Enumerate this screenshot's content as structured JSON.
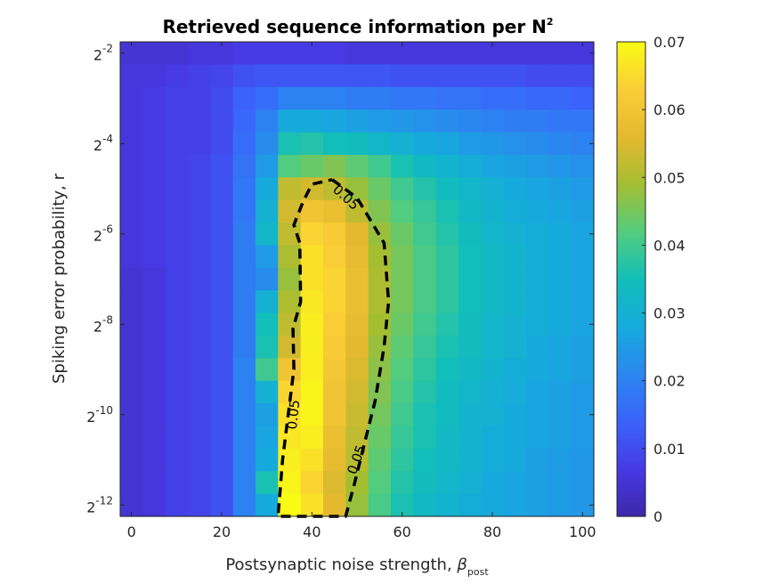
{
  "chart_data": {
    "type": "heatmap",
    "title": "Retrieved sequence information per N",
    "title_superscript": "2",
    "xlabel": "Postsynaptic noise strength, ",
    "xlabel_symbol": "β",
    "xlabel_subscript": "post",
    "ylabel": "Spiking error probability, r",
    "x": [
      0,
      5,
      10,
      15,
      20,
      25,
      30,
      35,
      40,
      45,
      50,
      55,
      60,
      65,
      70,
      75,
      80,
      85,
      90,
      95,
      100
    ],
    "y_exponents": [
      -2,
      -2.5,
      -3,
      -3.5,
      -4,
      -4.5,
      -5,
      -5.5,
      -6,
      -6.5,
      -7,
      -7.5,
      -8,
      -8.5,
      -9,
      -9.5,
      -10,
      -10.5,
      -11,
      -11.5,
      -12
    ],
    "z": [
      [
        0.005,
        0.005,
        0.005,
        0.006,
        0.006,
        0.007,
        0.007,
        0.007,
        0.007,
        0.007,
        0.006,
        0.006,
        0.006,
        0.006,
        0.006,
        0.006,
        0.006,
        0.006,
        0.006,
        0.006,
        0.006
      ],
      [
        0.006,
        0.006,
        0.007,
        0.008,
        0.009,
        0.011,
        0.012,
        0.012,
        0.012,
        0.012,
        0.012,
        0.012,
        0.011,
        0.011,
        0.011,
        0.011,
        0.011,
        0.011,
        0.01,
        0.01,
        0.01
      ],
      [
        0.006,
        0.007,
        0.008,
        0.008,
        0.01,
        0.014,
        0.016,
        0.02,
        0.02,
        0.02,
        0.019,
        0.019,
        0.018,
        0.018,
        0.017,
        0.017,
        0.016,
        0.016,
        0.015,
        0.015,
        0.014
      ],
      [
        0.006,
        0.007,
        0.008,
        0.008,
        0.01,
        0.015,
        0.02,
        0.028,
        0.028,
        0.027,
        0.026,
        0.025,
        0.024,
        0.023,
        0.022,
        0.021,
        0.02,
        0.019,
        0.019,
        0.018,
        0.018
      ],
      [
        0.006,
        0.007,
        0.008,
        0.008,
        0.01,
        0.016,
        0.022,
        0.036,
        0.037,
        0.035,
        0.034,
        0.032,
        0.03,
        0.028,
        0.027,
        0.025,
        0.024,
        0.023,
        0.022,
        0.021,
        0.02
      ],
      [
        0.006,
        0.007,
        0.008,
        0.009,
        0.011,
        0.017,
        0.025,
        0.042,
        0.044,
        0.046,
        0.043,
        0.04,
        0.036,
        0.033,
        0.031,
        0.029,
        0.027,
        0.026,
        0.025,
        0.024,
        0.023
      ],
      [
        0.006,
        0.007,
        0.008,
        0.009,
        0.011,
        0.018,
        0.028,
        0.052,
        0.054,
        0.052,
        0.048,
        0.044,
        0.04,
        0.037,
        0.034,
        0.032,
        0.03,
        0.028,
        0.027,
        0.026,
        0.025
      ],
      [
        0.006,
        0.007,
        0.008,
        0.009,
        0.011,
        0.018,
        0.03,
        0.054,
        0.06,
        0.058,
        0.052,
        0.046,
        0.042,
        0.039,
        0.036,
        0.033,
        0.031,
        0.029,
        0.028,
        0.027,
        0.026
      ],
      [
        0.006,
        0.007,
        0.008,
        0.009,
        0.011,
        0.019,
        0.032,
        0.052,
        0.064,
        0.062,
        0.056,
        0.048,
        0.044,
        0.04,
        0.037,
        0.034,
        0.032,
        0.03,
        0.029,
        0.028,
        0.027
      ],
      [
        0.006,
        0.007,
        0.008,
        0.009,
        0.011,
        0.019,
        0.025,
        0.05,
        0.066,
        0.063,
        0.057,
        0.049,
        0.045,
        0.041,
        0.038,
        0.035,
        0.033,
        0.031,
        0.029,
        0.028,
        0.027
      ],
      [
        0.005,
        0.006,
        0.008,
        0.009,
        0.011,
        0.019,
        0.022,
        0.048,
        0.066,
        0.064,
        0.058,
        0.05,
        0.045,
        0.041,
        0.038,
        0.035,
        0.033,
        0.031,
        0.029,
        0.028,
        0.027
      ],
      [
        0.005,
        0.006,
        0.008,
        0.009,
        0.011,
        0.019,
        0.03,
        0.05,
        0.067,
        0.064,
        0.058,
        0.05,
        0.045,
        0.041,
        0.038,
        0.035,
        0.033,
        0.031,
        0.029,
        0.028,
        0.027
      ],
      [
        0.005,
        0.006,
        0.008,
        0.009,
        0.011,
        0.019,
        0.035,
        0.052,
        0.068,
        0.063,
        0.057,
        0.049,
        0.044,
        0.04,
        0.037,
        0.034,
        0.032,
        0.03,
        0.029,
        0.028,
        0.027
      ],
      [
        0.005,
        0.006,
        0.008,
        0.009,
        0.011,
        0.019,
        0.036,
        0.054,
        0.068,
        0.062,
        0.056,
        0.048,
        0.043,
        0.039,
        0.036,
        0.034,
        0.032,
        0.03,
        0.028,
        0.027,
        0.026
      ],
      [
        0.005,
        0.006,
        0.008,
        0.009,
        0.011,
        0.02,
        0.04,
        0.06,
        0.068,
        0.061,
        0.055,
        0.047,
        0.042,
        0.038,
        0.035,
        0.033,
        0.031,
        0.029,
        0.028,
        0.027,
        0.026
      ],
      [
        0.005,
        0.006,
        0.008,
        0.009,
        0.011,
        0.02,
        0.03,
        0.064,
        0.069,
        0.06,
        0.054,
        0.046,
        0.041,
        0.037,
        0.034,
        0.032,
        0.03,
        0.029,
        0.027,
        0.026,
        0.025
      ],
      [
        0.005,
        0.006,
        0.008,
        0.009,
        0.011,
        0.02,
        0.026,
        0.066,
        0.069,
        0.06,
        0.053,
        0.045,
        0.04,
        0.036,
        0.034,
        0.031,
        0.03,
        0.028,
        0.027,
        0.026,
        0.025
      ],
      [
        0.005,
        0.006,
        0.008,
        0.009,
        0.011,
        0.02,
        0.027,
        0.067,
        0.068,
        0.058,
        0.052,
        0.044,
        0.039,
        0.036,
        0.033,
        0.031,
        0.029,
        0.028,
        0.027,
        0.026,
        0.025
      ],
      [
        0.005,
        0.006,
        0.008,
        0.009,
        0.011,
        0.02,
        0.028,
        0.068,
        0.066,
        0.057,
        0.051,
        0.043,
        0.038,
        0.035,
        0.033,
        0.031,
        0.029,
        0.028,
        0.026,
        0.025,
        0.024
      ],
      [
        0.005,
        0.006,
        0.008,
        0.009,
        0.011,
        0.02,
        0.036,
        0.069,
        0.064,
        0.055,
        0.049,
        0.042,
        0.037,
        0.034,
        0.032,
        0.03,
        0.028,
        0.027,
        0.026,
        0.025,
        0.024
      ],
      [
        0.005,
        0.006,
        0.008,
        0.009,
        0.011,
        0.02,
        0.028,
        0.07,
        0.066,
        0.056,
        0.048,
        0.041,
        0.036,
        0.033,
        0.031,
        0.029,
        0.028,
        0.027,
        0.026,
        0.025,
        0.024
      ]
    ],
    "xlim": [
      -2.5,
      102.5
    ],
    "ylim_exponent": [
      -12.25,
      -1.75
    ],
    "y_scale": "log2",
    "xticks": [
      0,
      20,
      40,
      60,
      80,
      100
    ],
    "yticks_base": "2",
    "yticks_exponents": [
      "-2",
      "-4",
      "-6",
      "-8",
      "-10",
      "-12"
    ],
    "colorbar": {
      "colormap": "parula",
      "range": [
        0,
        0.07
      ],
      "ticks": [
        "0",
        "0.01",
        "0.02",
        "0.03",
        "0.04",
        "0.05",
        "0.06",
        "0.07"
      ]
    },
    "contour": {
      "level": 0.05,
      "style": "dashed",
      "color": "#000000",
      "labels": [
        "0.05",
        "0.05",
        "0.05"
      ],
      "path": [
        [
          44.5,
          -4.8
        ],
        [
          50,
          -5.2
        ],
        [
          56,
          -6.2
        ],
        [
          57,
          -7.5
        ],
        [
          56,
          -8.5
        ],
        [
          54,
          -9.7
        ],
        [
          52,
          -10.5
        ],
        [
          49.5,
          -11.5
        ],
        [
          47.5,
          -12.25
        ],
        [
          32.5,
          -12.25
        ],
        [
          33.5,
          -11
        ],
        [
          35,
          -9.8
        ],
        [
          36,
          -9
        ],
        [
          35.8,
          -8.1
        ],
        [
          37.5,
          -7.5
        ],
        [
          37.3,
          -6.2
        ],
        [
          36,
          -5.8
        ],
        [
          38,
          -5.3
        ],
        [
          40,
          -4.9
        ],
        [
          44.5,
          -4.8
        ]
      ]
    }
  }
}
